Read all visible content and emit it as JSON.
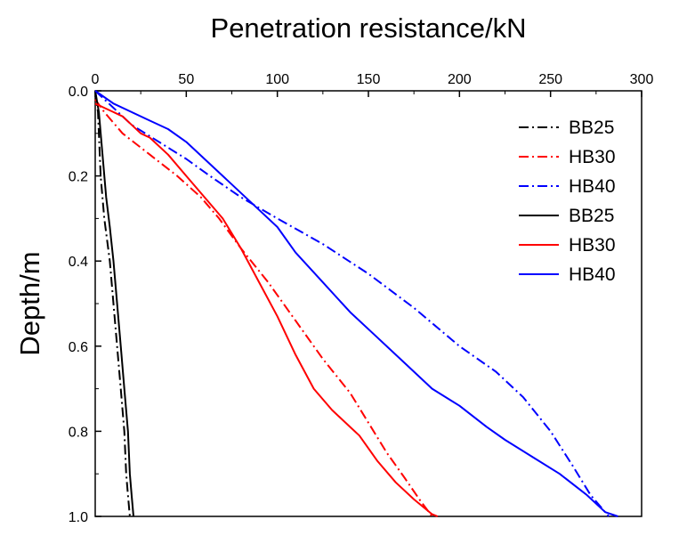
{
  "chart_data": {
    "type": "line",
    "title": "",
    "xlabel": "Penetration resistance/kN",
    "ylabel": "Depth/m",
    "x_axis_position": "top",
    "y_axis_inverted": true,
    "xlim": [
      0,
      300
    ],
    "ylim": [
      0,
      1.0
    ],
    "xticks": [
      "0",
      "50",
      "100",
      "150",
      "200",
      "250",
      "300"
    ],
    "yticks": [
      "0.0",
      "0.2",
      "0.4",
      "0.6",
      "0.8",
      "1.0"
    ],
    "grid": false,
    "legend_position": "top-right",
    "series": [
      {
        "name": "BB25",
        "style": "dashdot",
        "color": "#000000",
        "points": [
          [
            0,
            0
          ],
          [
            1.5,
            0.05
          ],
          [
            3,
            0.2
          ],
          [
            5,
            0.3
          ],
          [
            8,
            0.4
          ],
          [
            10,
            0.5
          ],
          [
            12,
            0.6
          ],
          [
            14,
            0.7
          ],
          [
            16,
            0.8
          ],
          [
            17,
            0.9
          ],
          [
            18,
            0.95
          ],
          [
            19,
            1.0
          ]
        ]
      },
      {
        "name": "HB30",
        "style": "dashdot",
        "color": "#ff0000",
        "points": [
          [
            0,
            0.02
          ],
          [
            5,
            0.05
          ],
          [
            15,
            0.1
          ],
          [
            30,
            0.15
          ],
          [
            45,
            0.2
          ],
          [
            58,
            0.25
          ],
          [
            68,
            0.3
          ],
          [
            80,
            0.37
          ],
          [
            95,
            0.45
          ],
          [
            110,
            0.54
          ],
          [
            125,
            0.63
          ],
          [
            140,
            0.71
          ],
          [
            150,
            0.78
          ],
          [
            160,
            0.85
          ],
          [
            170,
            0.91
          ],
          [
            178,
            0.96
          ],
          [
            185,
            1.0
          ]
        ]
      },
      {
        "name": "HB40",
        "style": "dashdot",
        "color": "#0000ff",
        "points": [
          [
            0,
            0
          ],
          [
            10,
            0.04
          ],
          [
            20,
            0.08
          ],
          [
            35,
            0.12
          ],
          [
            50,
            0.16
          ],
          [
            63,
            0.2
          ],
          [
            80,
            0.25
          ],
          [
            100,
            0.3
          ],
          [
            125,
            0.36
          ],
          [
            150,
            0.43
          ],
          [
            175,
            0.51
          ],
          [
            200,
            0.6
          ],
          [
            220,
            0.66
          ],
          [
            235,
            0.72
          ],
          [
            250,
            0.8
          ],
          [
            262,
            0.88
          ],
          [
            272,
            0.95
          ],
          [
            282,
            1.0
          ]
        ]
      },
      {
        "name": "BB25",
        "style": "solid",
        "color": "#000000",
        "points": [
          [
            0,
            0
          ],
          [
            2,
            0.05
          ],
          [
            4,
            0.15
          ],
          [
            6,
            0.25
          ],
          [
            8,
            0.32
          ],
          [
            10,
            0.4
          ],
          [
            12,
            0.5
          ],
          [
            14,
            0.6
          ],
          [
            16,
            0.7
          ],
          [
            18,
            0.8
          ],
          [
            19,
            0.9
          ],
          [
            20,
            0.95
          ],
          [
            21,
            1.0
          ]
        ]
      },
      {
        "name": "HB30",
        "style": "solid",
        "color": "#ff0000",
        "points": [
          [
            0,
            0.03
          ],
          [
            5,
            0.04
          ],
          [
            10,
            0.05
          ],
          [
            15,
            0.06
          ],
          [
            20,
            0.08
          ],
          [
            25,
            0.1
          ],
          [
            30,
            0.11
          ],
          [
            40,
            0.15
          ],
          [
            50,
            0.2
          ],
          [
            60,
            0.25
          ],
          [
            70,
            0.3
          ],
          [
            80,
            0.37
          ],
          [
            90,
            0.45
          ],
          [
            100,
            0.53
          ],
          [
            110,
            0.62
          ],
          [
            120,
            0.7
          ],
          [
            130,
            0.75
          ],
          [
            140,
            0.79
          ],
          [
            145,
            0.81
          ],
          [
            155,
            0.87
          ],
          [
            165,
            0.92
          ],
          [
            175,
            0.96
          ],
          [
            185,
            0.995
          ],
          [
            188,
            1.0
          ]
        ]
      },
      {
        "name": "HB40",
        "style": "solid",
        "color": "#0000ff",
        "points": [
          [
            0,
            0
          ],
          [
            10,
            0.03
          ],
          [
            20,
            0.05
          ],
          [
            30,
            0.07
          ],
          [
            40,
            0.09
          ],
          [
            50,
            0.12
          ],
          [
            60,
            0.16
          ],
          [
            70,
            0.2
          ],
          [
            80,
            0.24
          ],
          [
            90,
            0.28
          ],
          [
            100,
            0.32
          ],
          [
            110,
            0.38
          ],
          [
            125,
            0.45
          ],
          [
            140,
            0.52
          ],
          [
            155,
            0.58
          ],
          [
            170,
            0.64
          ],
          [
            185,
            0.7
          ],
          [
            200,
            0.74
          ],
          [
            215,
            0.79
          ],
          [
            225,
            0.82
          ],
          [
            240,
            0.86
          ],
          [
            255,
            0.9
          ],
          [
            270,
            0.95
          ],
          [
            280,
            0.99
          ],
          [
            287,
            1.0
          ]
        ]
      }
    ]
  }
}
